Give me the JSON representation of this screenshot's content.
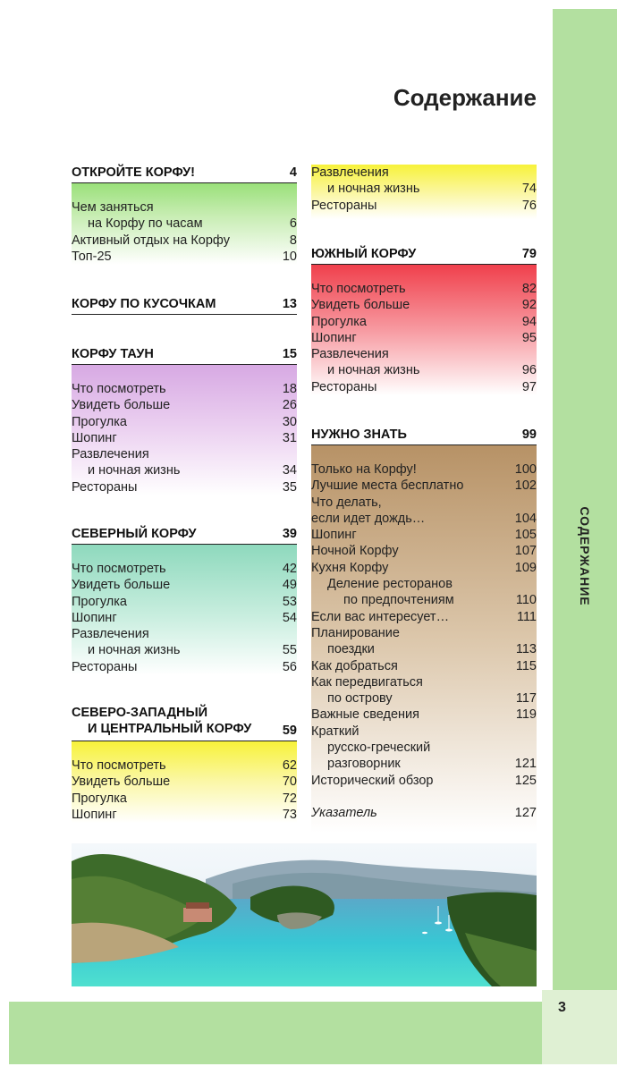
{
  "page": {
    "title": "Содержание",
    "sidebar_label": "СОДЕРЖАНИЕ",
    "page_number": "3"
  },
  "left_column": [
    {
      "heading": "ОТКРОЙТЕ КОРФУ!",
      "page": "4",
      "entries": [
        {
          "text": "Чем заняться",
          "page": ""
        },
        {
          "text": "на Корфу по часам",
          "page": "6",
          "indent": 1
        },
        {
          "text": "Активный отдых на Корфу",
          "page": "8"
        },
        {
          "text": "Топ-25",
          "page": "10"
        }
      ]
    },
    {
      "heading": "КОРФУ ПО КУСОЧКАМ",
      "page": "13",
      "entries": []
    },
    {
      "heading": "КОРФУ ТАУН",
      "page": "15",
      "entries": [
        {
          "text": "Что посмотреть",
          "page": "18"
        },
        {
          "text": "Увидеть больше",
          "page": "26"
        },
        {
          "text": "Прогулка",
          "page": "30"
        },
        {
          "text": "Шопинг",
          "page": "31"
        },
        {
          "text": "Развлечения",
          "page": ""
        },
        {
          "text": "и ночная жизнь",
          "page": "34",
          "indent": 1
        },
        {
          "text": "Рестораны",
          "page": "35"
        }
      ]
    },
    {
      "heading": "СЕВЕРНЫЙ КОРФУ",
      "page": "39",
      "entries": [
        {
          "text": "Что посмотреть",
          "page": "42"
        },
        {
          "text": "Увидеть больше",
          "page": "49"
        },
        {
          "text": "Прогулка",
          "page": "53"
        },
        {
          "text": "Шопинг",
          "page": "54"
        },
        {
          "text": "Развлечения",
          "page": ""
        },
        {
          "text": "и ночная жизнь",
          "page": "55",
          "indent": 1
        },
        {
          "text": "Рестораны",
          "page": "56"
        }
      ]
    },
    {
      "heading_line1": "СЕВЕРО-ЗАПАДНЫЙ",
      "heading_line2": "И ЦЕНТРАЛЬНЫЙ КОРФУ",
      "page": "59",
      "entries": [
        {
          "text": "Что посмотреть",
          "page": "62"
        },
        {
          "text": "Увидеть больше",
          "page": "70"
        },
        {
          "text": "Прогулка",
          "page": "72"
        },
        {
          "text": "Шопинг",
          "page": "73"
        }
      ]
    }
  ],
  "right_column": [
    {
      "continued_entries": [
        {
          "text": "Развлечения",
          "page": ""
        },
        {
          "text": "и ночная жизнь",
          "page": "74",
          "indent": 1
        },
        {
          "text": "Рестораны",
          "page": "76"
        }
      ]
    },
    {
      "heading": "ЮЖНЫЙ КОРФУ",
      "page": "79",
      "entries": [
        {
          "text": "Что посмотреть",
          "page": "82"
        },
        {
          "text": "Увидеть больше",
          "page": "92"
        },
        {
          "text": "Прогулка",
          "page": "94"
        },
        {
          "text": "Шопинг",
          "page": "95"
        },
        {
          "text": "Развлечения",
          "page": ""
        },
        {
          "text": "и ночная жизнь",
          "page": "96",
          "indent": 1
        },
        {
          "text": "Рестораны",
          "page": "97"
        }
      ]
    },
    {
      "heading": "НУЖНО ЗНАТЬ",
      "page": "99",
      "entries": [
        {
          "text": "Только на Корфу!",
          "page": "100"
        },
        {
          "text": "Лучшие места бесплатно",
          "page": "102"
        },
        {
          "text": "Что делать,",
          "page": ""
        },
        {
          "text": "если идет дождь…",
          "page": "104"
        },
        {
          "text": "Шопинг",
          "page": "105"
        },
        {
          "text": "Ночной Корфу",
          "page": "107"
        },
        {
          "text": "Кухня Корфу",
          "page": "109"
        },
        {
          "text": "Деление ресторанов",
          "page": "",
          "indent": 1
        },
        {
          "text": "по предпочтениям",
          "page": "110",
          "indent": 2
        },
        {
          "text": "Если вас интересует…",
          "page": "111"
        },
        {
          "text": "Планирование",
          "page": ""
        },
        {
          "text": "поездки",
          "page": "113",
          "indent": 1
        },
        {
          "text": "Как добраться",
          "page": "115"
        },
        {
          "text": "Как передвигаться",
          "page": ""
        },
        {
          "text": "по острову",
          "page": "117",
          "indent": 1
        },
        {
          "text": "Важные сведения",
          "page": "119"
        },
        {
          "text": "Краткий",
          "page": ""
        },
        {
          "text": "русско-греческий",
          "page": "",
          "indent": 1
        },
        {
          "text": "разговорник",
          "page": "121",
          "indent": 1
        },
        {
          "text": "Исторический обзор",
          "page": "125"
        },
        {
          "text": "",
          "page": ""
        },
        {
          "text": "Указатель",
          "page": "127",
          "italic": true
        }
      ]
    }
  ]
}
